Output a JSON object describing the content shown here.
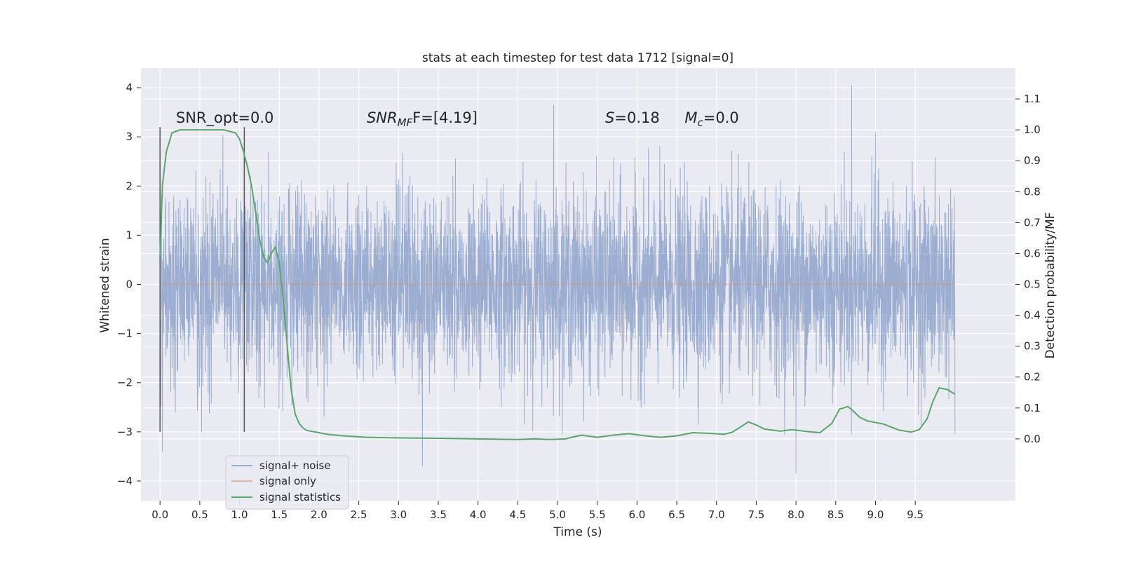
{
  "chart_data": {
    "type": "line",
    "title": "stats at each timestep for test data 1712 [signal=0]",
    "xlabel": "Time (s)",
    "ylabel_left": "Whitened strain",
    "ylabel_right": "Detection probability/MF",
    "xlim": [
      -0.24,
      10.76
    ],
    "ylim_left": [
      -4.4,
      4.4
    ],
    "ylim_right": [
      -0.2,
      1.2
    ],
    "x_ticks": [
      0.0,
      0.5,
      1.0,
      1.5,
      2.0,
      2.5,
      3.0,
      3.5,
      4.0,
      4.5,
      5.0,
      5.5,
      6.0,
      6.5,
      7.0,
      7.5,
      8.0,
      8.5,
      9.0,
      9.5
    ],
    "x_tick_labels": [
      "0.0",
      "0.5",
      "1.0",
      "1.5",
      "2.0",
      "2.5",
      "3.0",
      "3.5",
      "4.0",
      "4.5",
      "5.0",
      "5.5",
      "6.0",
      "6.5",
      "7.0",
      "7.5",
      "8.0",
      "8.5",
      "9.0",
      "9.5"
    ],
    "y_left_ticks": [
      4,
      3,
      2,
      1,
      0,
      -1,
      -2,
      -3,
      -4
    ],
    "y_left_tick_labels": [
      "4",
      "3",
      "2",
      "1",
      "0",
      "−1",
      "−2",
      "−3",
      "−4"
    ],
    "y_right_ticks": [
      1.1,
      1.0,
      0.9,
      0.8,
      0.7,
      0.6,
      0.5,
      0.4,
      0.3,
      0.2,
      0.1,
      0.0
    ],
    "y_right_tick_labels": [
      "1.1",
      "1.0",
      "0.9",
      "0.8",
      "0.7",
      "0.6",
      "0.5",
      "0.4",
      "0.3",
      "0.2",
      "0.1",
      "0.0"
    ],
    "grid": true,
    "legend_position": "lower-left",
    "colors": {
      "background": "#eaeaf2",
      "grid": "#ffffff",
      "noise": "#4c72b0",
      "signal_only": "#dd8452",
      "statistics": "#55a868",
      "marker": "#555555"
    },
    "series": [
      {
        "name": "signal+ noise",
        "axis": "left",
        "x_range": [
          0.0,
          10.0
        ],
        "typical_band": [
          -1.2,
          1.35
        ],
        "notable_peaks": [
          {
            "x": 0.03,
            "y": -3.4
          },
          {
            "x": 3.3,
            "y": -3.7
          },
          {
            "x": 4.95,
            "y": 3.65
          },
          {
            "x": 8.0,
            "y": -3.85
          },
          {
            "x": 8.7,
            "y": 4.05
          },
          {
            "x": 9.0,
            "y": 3.1
          },
          {
            "x": 10.0,
            "y": -3.05
          }
        ]
      },
      {
        "name": "signal only",
        "axis": "left",
        "x": [
          0.0,
          10.0
        ],
        "y": [
          0.0,
          0.0
        ]
      },
      {
        "name": "signal statistics",
        "axis": "right",
        "x": [
          0.0,
          0.03,
          0.08,
          0.15,
          0.25,
          0.4,
          0.6,
          0.8,
          0.95,
          1.0,
          1.05,
          1.1,
          1.15,
          1.2,
          1.25,
          1.3,
          1.35,
          1.4,
          1.45,
          1.5,
          1.55,
          1.6,
          1.65,
          1.7,
          1.75,
          1.8,
          1.85,
          1.9,
          2.0,
          2.1,
          2.3,
          2.6,
          3.0,
          3.5,
          4.0,
          4.5,
          4.7,
          4.9,
          5.1,
          5.3,
          5.5,
          5.7,
          5.9,
          6.1,
          6.3,
          6.5,
          6.7,
          6.9,
          7.1,
          7.2,
          7.3,
          7.4,
          7.5,
          7.6,
          7.8,
          7.95,
          8.1,
          8.3,
          8.45,
          8.55,
          8.6,
          8.65,
          8.7,
          8.8,
          8.9,
          9.1,
          9.3,
          9.45,
          9.55,
          9.65,
          9.72,
          9.8,
          9.9,
          10.0
        ],
        "y": [
          0.59,
          0.82,
          0.93,
          0.99,
          1.0,
          1.0,
          1.0,
          1.0,
          0.99,
          0.97,
          0.93,
          0.88,
          0.82,
          0.74,
          0.65,
          0.59,
          0.57,
          0.6,
          0.62,
          0.57,
          0.45,
          0.3,
          0.16,
          0.08,
          0.05,
          0.035,
          0.027,
          0.025,
          0.02,
          0.015,
          0.01,
          0.005,
          0.003,
          0.002,
          0.0,
          -0.002,
          0.0,
          -0.002,
          0.0,
          0.012,
          0.005,
          0.012,
          0.017,
          0.01,
          0.005,
          0.01,
          0.02,
          0.018,
          0.015,
          0.022,
          0.038,
          0.055,
          0.045,
          0.032,
          0.025,
          0.03,
          0.025,
          0.02,
          0.05,
          0.097,
          0.1,
          0.105,
          0.095,
          0.07,
          0.058,
          0.048,
          0.028,
          0.022,
          0.03,
          0.065,
          0.12,
          0.165,
          0.16,
          0.145
        ]
      }
    ],
    "vertical_markers": [
      {
        "x": 0.0,
        "y_range": [
          -3.0,
          3.2
        ]
      },
      {
        "x": 1.06,
        "y_range": [
          -3.0,
          3.2
        ]
      }
    ],
    "annotations": [
      {
        "text": "SNR_opt=0.0",
        "x": 0.2,
        "y": 3.2
      },
      {
        "text_main": "SNR",
        "text_sub": "MF",
        "text_rest": "F=[4.19]",
        "x": 2.6,
        "y": 3.2
      },
      {
        "text_main": "S",
        "text_rest": "=0.18",
        "x": 5.6,
        "y": 3.2
      },
      {
        "text_main": "M",
        "text_sub": "c",
        "text_rest": "=0.0",
        "x": 6.6,
        "y": 3.2
      }
    ]
  }
}
